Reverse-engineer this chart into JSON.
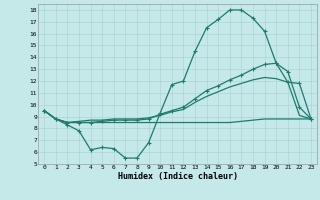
{
  "xlabel": "Humidex (Indice chaleur)",
  "bg_color": "#c5e8e8",
  "line_color": "#1e7b6e",
  "grid_color": "#afd4d4",
  "xlim": [
    -0.5,
    23.5
  ],
  "ylim": [
    5,
    18.5
  ],
  "xticks": [
    0,
    1,
    2,
    3,
    4,
    5,
    6,
    7,
    8,
    9,
    10,
    11,
    12,
    13,
    14,
    15,
    16,
    17,
    18,
    19,
    20,
    21,
    22,
    23
  ],
  "yticks": [
    5,
    6,
    7,
    8,
    9,
    10,
    11,
    12,
    13,
    14,
    15,
    16,
    17,
    18
  ],
  "line1": [
    9.5,
    8.8,
    8.3,
    7.8,
    6.2,
    6.4,
    6.3,
    5.5,
    5.5,
    6.8,
    9.3,
    11.7,
    12.0,
    14.5,
    16.5,
    17.2,
    18.0,
    18.0,
    17.3,
    16.2,
    13.5,
    11.9,
    11.8,
    8.8
  ],
  "line2": [
    9.5,
    8.8,
    8.5,
    8.5,
    8.5,
    8.6,
    8.7,
    8.7,
    8.7,
    8.8,
    9.2,
    9.5,
    9.8,
    10.5,
    11.2,
    11.6,
    12.1,
    12.5,
    13.0,
    13.4,
    13.5,
    12.8,
    9.8,
    8.8
  ],
  "line3": [
    9.5,
    8.8,
    8.5,
    8.6,
    8.7,
    8.7,
    8.8,
    8.8,
    8.8,
    8.9,
    9.1,
    9.4,
    9.6,
    10.2,
    10.7,
    11.1,
    11.5,
    11.8,
    12.1,
    12.3,
    12.2,
    11.9,
    9.1,
    8.8
  ],
  "line4": [
    9.5,
    8.8,
    8.5,
    8.5,
    8.5,
    8.5,
    8.5,
    8.5,
    8.5,
    8.5,
    8.5,
    8.5,
    8.5,
    8.5,
    8.5,
    8.5,
    8.5,
    8.6,
    8.7,
    8.8,
    8.8,
    8.8,
    8.8,
    8.8
  ]
}
